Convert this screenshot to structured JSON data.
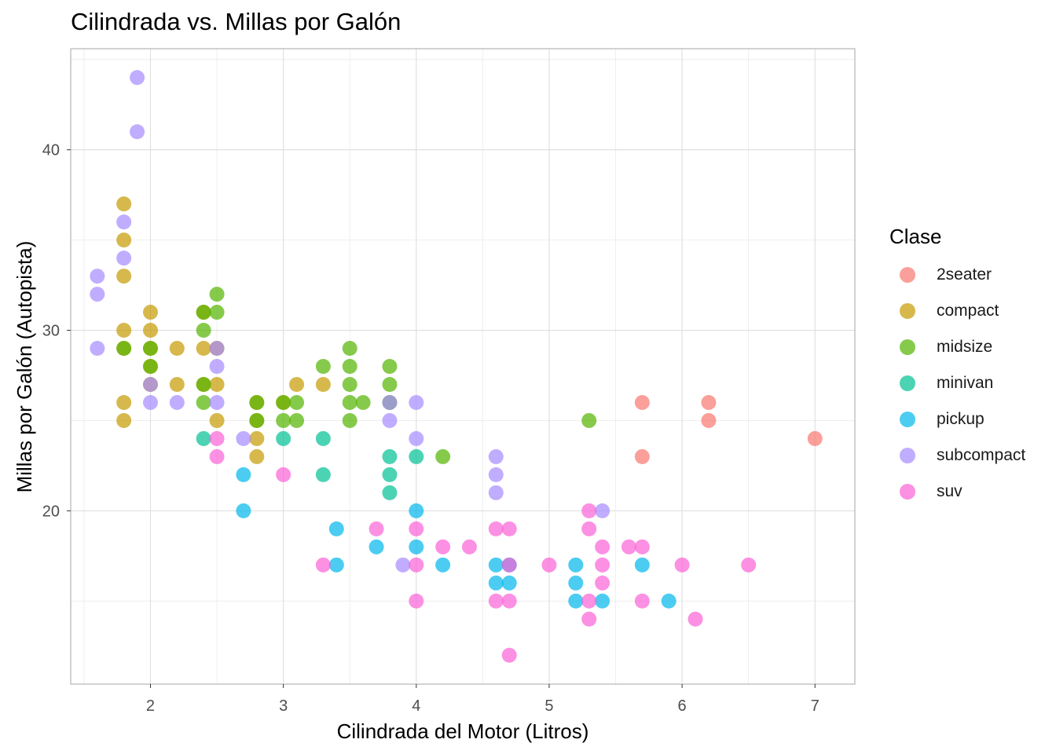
{
  "chart_data": {
    "type": "scatter",
    "title": "Cilindrada vs. Millas por Galón",
    "xlabel": "Cilindrada del Motor (Litros)",
    "ylabel": "Millas por Galón (Autopista)",
    "xlim": [
      1.4,
      7.3
    ],
    "ylim": [
      10.4,
      45.6
    ],
    "xticks": [
      2,
      3,
      4,
      5,
      6,
      7
    ],
    "yticks": [
      20,
      30,
      40
    ],
    "grid": true,
    "legend": {
      "title": "Clase",
      "position": "right"
    },
    "series": [
      {
        "name": "2seater",
        "color": "#F8766D",
        "points": [
          [
            5.7,
            26
          ],
          [
            5.7,
            23
          ],
          [
            6.2,
            26
          ],
          [
            6.2,
            25
          ],
          [
            7.0,
            24
          ]
        ]
      },
      {
        "name": "compact",
        "color": "#C49A00",
        "points": [
          [
            1.8,
            37
          ],
          [
            1.8,
            35
          ],
          [
            1.8,
            33
          ],
          [
            1.8,
            30
          ],
          [
            1.8,
            29
          ],
          [
            1.8,
            26
          ],
          [
            1.8,
            25
          ],
          [
            2.0,
            31
          ],
          [
            2.0,
            30
          ],
          [
            2.0,
            29
          ],
          [
            2.0,
            28
          ],
          [
            2.0,
            27
          ],
          [
            2.2,
            29
          ],
          [
            2.2,
            27
          ],
          [
            2.4,
            31
          ],
          [
            2.4,
            29
          ],
          [
            2.4,
            27
          ],
          [
            2.5,
            29
          ],
          [
            2.5,
            27
          ],
          [
            2.5,
            25
          ],
          [
            2.8,
            26
          ],
          [
            2.8,
            25
          ],
          [
            2.8,
            24
          ],
          [
            2.8,
            23
          ],
          [
            3.0,
            26
          ],
          [
            3.1,
            27
          ],
          [
            3.3,
            27
          ]
        ]
      },
      {
        "name": "midsize",
        "color": "#53B400",
        "points": [
          [
            1.8,
            29
          ],
          [
            2.0,
            29
          ],
          [
            2.0,
            28
          ],
          [
            2.4,
            31
          ],
          [
            2.4,
            30
          ],
          [
            2.4,
            27
          ],
          [
            2.4,
            26
          ],
          [
            2.5,
            32
          ],
          [
            2.5,
            31
          ],
          [
            2.8,
            26
          ],
          [
            2.8,
            25
          ],
          [
            3.0,
            26
          ],
          [
            3.0,
            25
          ],
          [
            3.1,
            26
          ],
          [
            3.1,
            25
          ],
          [
            3.3,
            28
          ],
          [
            3.5,
            29
          ],
          [
            3.5,
            28
          ],
          [
            3.5,
            27
          ],
          [
            3.5,
            26
          ],
          [
            3.5,
            25
          ],
          [
            3.6,
            26
          ],
          [
            3.8,
            28
          ],
          [
            3.8,
            27
          ],
          [
            3.8,
            26
          ],
          [
            4.2,
            23
          ],
          [
            5.3,
            25
          ]
        ]
      },
      {
        "name": "minivan",
        "color": "#00C094",
        "points": [
          [
            2.4,
            24
          ],
          [
            3.0,
            24
          ],
          [
            3.3,
            24
          ],
          [
            3.3,
            22
          ],
          [
            3.8,
            23
          ],
          [
            3.8,
            22
          ],
          [
            3.8,
            21
          ],
          [
            4.0,
            23
          ]
        ]
      },
      {
        "name": "pickup",
        "color": "#00B6EB",
        "points": [
          [
            2.7,
            22
          ],
          [
            2.7,
            20
          ],
          [
            3.4,
            19
          ],
          [
            3.4,
            17
          ],
          [
            3.7,
            18
          ],
          [
            4.0,
            20
          ],
          [
            4.0,
            18
          ],
          [
            4.2,
            17
          ],
          [
            4.6,
            17
          ],
          [
            4.6,
            16
          ],
          [
            4.7,
            17
          ],
          [
            4.7,
            16
          ],
          [
            5.2,
            17
          ],
          [
            5.2,
            16
          ],
          [
            5.2,
            15
          ],
          [
            5.4,
            15
          ],
          [
            5.7,
            17
          ],
          [
            5.9,
            15
          ]
        ]
      },
      {
        "name": "subcompact",
        "color": "#A58AFF",
        "points": [
          [
            1.6,
            33
          ],
          [
            1.6,
            32
          ],
          [
            1.6,
            29
          ],
          [
            1.8,
            36
          ],
          [
            1.8,
            34
          ],
          [
            1.9,
            44
          ],
          [
            1.9,
            41
          ],
          [
            2.0,
            27
          ],
          [
            2.0,
            26
          ],
          [
            2.2,
            26
          ],
          [
            2.5,
            29
          ],
          [
            2.5,
            28
          ],
          [
            2.5,
            26
          ],
          [
            2.7,
            24
          ],
          [
            3.8,
            26
          ],
          [
            3.8,
            25
          ],
          [
            3.9,
            17
          ],
          [
            4.0,
            26
          ],
          [
            4.0,
            24
          ],
          [
            4.6,
            23
          ],
          [
            4.6,
            22
          ],
          [
            4.6,
            21
          ],
          [
            5.4,
            20
          ]
        ]
      },
      {
        "name": "suv",
        "color": "#FB61D7",
        "points": [
          [
            2.5,
            24
          ],
          [
            2.5,
            23
          ],
          [
            3.0,
            22
          ],
          [
            3.3,
            17
          ],
          [
            3.7,
            19
          ],
          [
            4.0,
            19
          ],
          [
            4.0,
            17
          ],
          [
            4.0,
            15
          ],
          [
            4.2,
            18
          ],
          [
            4.4,
            18
          ],
          [
            4.6,
            19
          ],
          [
            4.6,
            15
          ],
          [
            4.7,
            19
          ],
          [
            4.7,
            17
          ],
          [
            4.7,
            15
          ],
          [
            4.7,
            12
          ],
          [
            5.0,
            17
          ],
          [
            5.3,
            20
          ],
          [
            5.3,
            19
          ],
          [
            5.3,
            15
          ],
          [
            5.3,
            14
          ],
          [
            5.4,
            18
          ],
          [
            5.4,
            17
          ],
          [
            5.4,
            16
          ],
          [
            5.6,
            18
          ],
          [
            5.7,
            18
          ],
          [
            5.7,
            15
          ],
          [
            6.0,
            17
          ],
          [
            6.1,
            14
          ],
          [
            6.5,
            17
          ]
        ]
      }
    ]
  }
}
